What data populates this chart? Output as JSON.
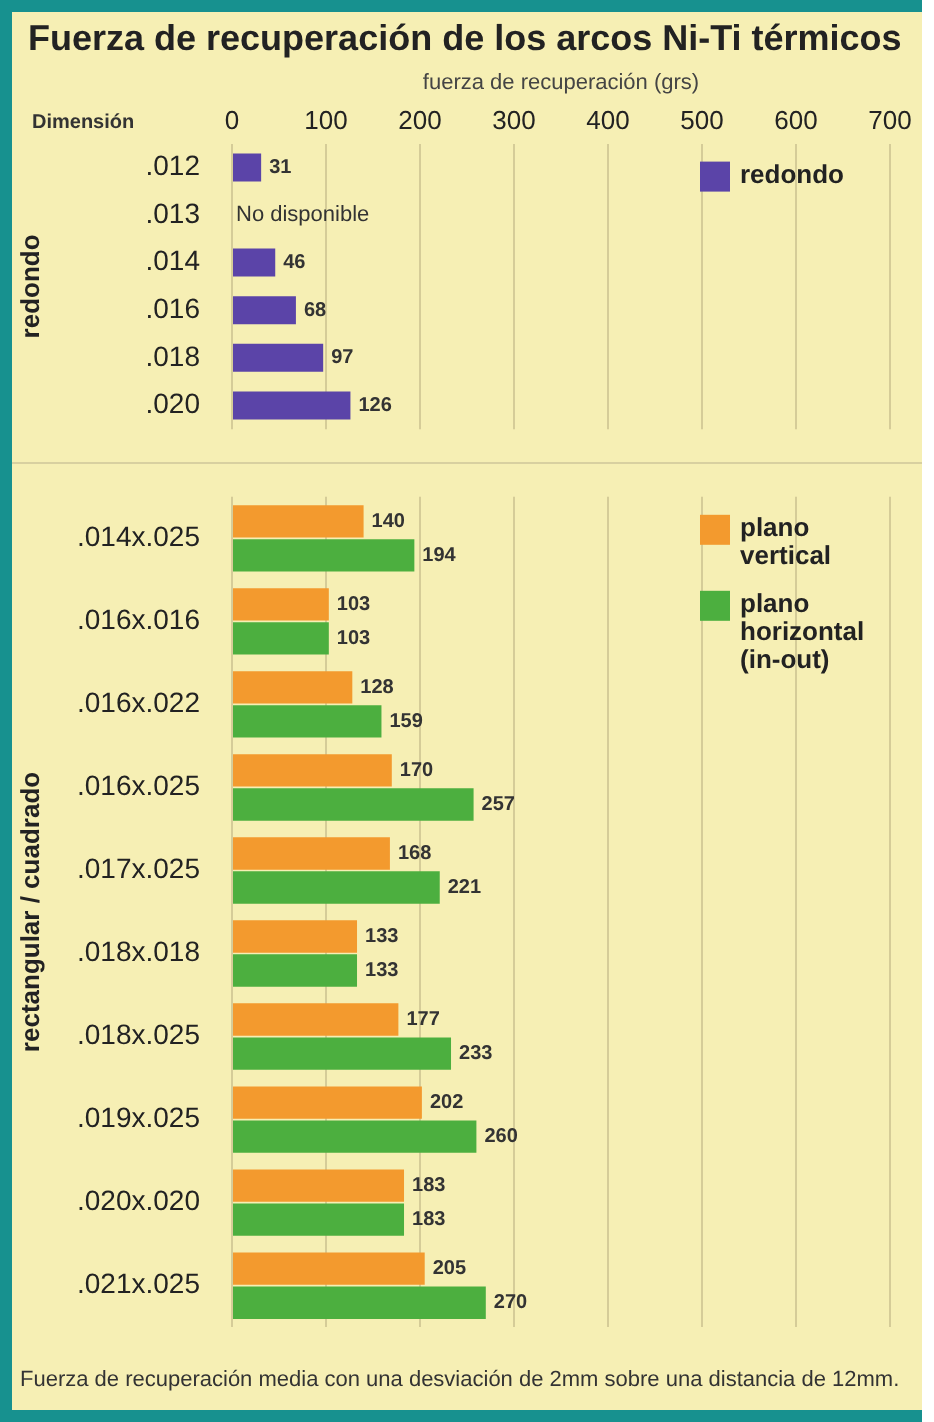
{
  "chart_data": [
    {
      "type": "bar",
      "title": "Fuerza de recuperación de los arcos Ni-Ti térmicos",
      "xlabel": "fuerza de recuperación (grs)",
      "ylabel": "redondo",
      "orientation": "horizontal",
      "categories": [
        ".012",
        ".013",
        ".014",
        ".016",
        ".018",
        ".020"
      ],
      "series": [
        {
          "name": "redondo",
          "color": "#5b44a8",
          "values": [
            31,
            null,
            46,
            68,
            97,
            126
          ]
        }
      ],
      "xlim": [
        0,
        700
      ],
      "xticks": [
        0,
        100,
        200,
        300,
        400,
        500,
        600,
        700
      ],
      "grid": "x",
      "legend": "top right",
      "data_labels": true,
      "annotations": [
        "Dimensión",
        "No disponible"
      ]
    },
    {
      "type": "bar",
      "ylabel": "rectangular / cuadrado",
      "orientation": "horizontal",
      "categories": [
        ".014x.025",
        ".016x.016",
        ".016x.022",
        ".016x.025",
        ".017x.025",
        ".018x.018",
        ".018x.025",
        ".019x.025",
        ".020x.020",
        ".021x.025"
      ],
      "series": [
        {
          "name": "plano vertical",
          "color": "#f39a2e",
          "values": [
            140,
            103,
            128,
            170,
            168,
            133,
            177,
            202,
            183,
            205
          ]
        },
        {
          "name": "plano horizontal (in-out)",
          "color": "#4caf3f",
          "values": [
            194,
            103,
            159,
            257,
            221,
            133,
            233,
            260,
            183,
            270
          ]
        }
      ],
      "xlim": [
        0,
        700
      ],
      "xticks": [
        0,
        100,
        200,
        300,
        400,
        500,
        600,
        700
      ],
      "grid": "x",
      "legend": "top right",
      "data_labels": true,
      "tick_labels": "y",
      "annotations": [
        "Fuerza de recuperación media con una desviación de 2mm sobre una distancia de 12mm."
      ]
    }
  ]
}
